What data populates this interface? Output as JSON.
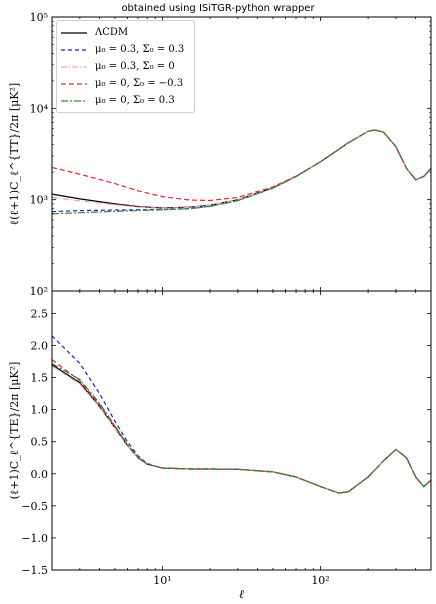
{
  "title": "obtained using ISiTGR-python wrapper",
  "chart_data": [
    {
      "type": "line",
      "panel": "top",
      "xscale": "log",
      "yscale": "log",
      "xlim": [
        2,
        500
      ],
      "ylim": [
        100,
        100000
      ],
      "xlabel": "ℓ",
      "ylabel": "ℓ(ℓ+1)C_ℓ^{TT}/2π [μK²]",
      "ytick_labels": [
        "10²",
        "10³",
        "10⁴",
        "10⁵"
      ],
      "ytick_values": [
        100,
        1000,
        10000,
        100000
      ],
      "legend_position": "top-left",
      "series": [
        {
          "name": "ΛCDM",
          "color": "#000000",
          "dash": "solid",
          "x": [
            2,
            3,
            5,
            7,
            10,
            15,
            20,
            30,
            50,
            70,
            100,
            150,
            200,
            220,
            250,
            300,
            350,
            400,
            450,
            500
          ],
          "y": [
            1150,
            1020,
            900,
            840,
            810,
            830,
            870,
            1000,
            1350,
            1800,
            2600,
            4200,
            5600,
            5800,
            5500,
            3800,
            2200,
            1650,
            1800,
            2200
          ]
        },
        {
          "name": "μ₀ = 0.3, Σ₀ = 0.3",
          "color": "#1f1fd6",
          "dash": "4,3",
          "x": [
            2,
            3,
            5,
            7,
            10,
            15,
            20,
            30,
            50,
            70,
            100,
            150,
            200,
            220,
            250,
            300,
            350,
            400,
            450,
            500
          ],
          "y": [
            740,
            760,
            770,
            775,
            780,
            800,
            850,
            980,
            1340,
            1790,
            2600,
            4200,
            5600,
            5800,
            5500,
            3800,
            2200,
            1650,
            1800,
            2200
          ]
        },
        {
          "name": "μ₀ = 0.3, Σ₀ = 0",
          "color": "#f4a3b7",
          "dash": "6,2,1,2",
          "x": [
            2,
            3,
            5,
            7,
            10,
            15,
            20,
            30,
            50,
            70,
            100,
            150,
            200,
            220,
            250,
            300,
            350,
            400,
            450,
            500
          ],
          "y": [
            1060,
            970,
            880,
            830,
            805,
            825,
            868,
            998,
            1348,
            1798,
            2600,
            4200,
            5600,
            5800,
            5500,
            3800,
            2200,
            1650,
            1800,
            2200
          ]
        },
        {
          "name": "μ₀ = 0, Σ₀ = −0.3",
          "color": "#e8252b",
          "dash": "5,3",
          "x": [
            2,
            3,
            5,
            7,
            10,
            15,
            20,
            30,
            50,
            70,
            100,
            150,
            200,
            220,
            250,
            300,
            350,
            400,
            450,
            500
          ],
          "y": [
            2250,
            1900,
            1500,
            1250,
            1080,
            990,
            980,
            1060,
            1380,
            1810,
            2600,
            4200,
            5600,
            5800,
            5500,
            3800,
            2200,
            1650,
            1800,
            2200
          ]
        },
        {
          "name": "μ₀ = 0, Σ₀ = 0.3",
          "color": "#2e8b2e",
          "dash": "7,2,2,2",
          "x": [
            2,
            3,
            5,
            7,
            10,
            15,
            20,
            30,
            50,
            70,
            100,
            150,
            200,
            220,
            250,
            300,
            350,
            400,
            450,
            500
          ],
          "y": [
            700,
            720,
            745,
            760,
            775,
            795,
            845,
            975,
            1335,
            1785,
            2600,
            4200,
            5600,
            5800,
            5500,
            3800,
            2200,
            1650,
            1800,
            2200
          ]
        }
      ]
    },
    {
      "type": "line",
      "panel": "bottom",
      "xscale": "log",
      "xlim": [
        2,
        500
      ],
      "ylim": [
        -1.5,
        2.85
      ],
      "xlabel": "ℓ",
      "ylabel": "(ℓ+1)C_ℓ^{TE}/2π [μK²]",
      "ytick_values": [
        -1.5,
        -1.0,
        -0.5,
        0.0,
        0.5,
        1.0,
        1.5,
        2.0,
        2.5
      ],
      "ytick_labels": [
        "−1.5",
        "−1.0",
        "−0.5",
        "0.0",
        "0.5",
        "1.0",
        "1.5",
        "2.0",
        "2.5"
      ],
      "xtick_values": [
        10,
        100
      ],
      "xtick_labels": [
        "10¹",
        "10²"
      ],
      "series": [
        {
          "name": "ΛCDM",
          "color": "#000000",
          "dash": "solid",
          "x": [
            2,
            3,
            4,
            5,
            6,
            7,
            8,
            10,
            15,
            20,
            30,
            50,
            70,
            100,
            130,
            150,
            200,
            250,
            300,
            350,
            400,
            450,
            500
          ],
          "y": [
            1.7,
            1.42,
            1.05,
            0.72,
            0.44,
            0.25,
            0.15,
            0.09,
            0.075,
            0.075,
            0.07,
            0.03,
            -0.05,
            -0.2,
            -0.3,
            -0.28,
            -0.05,
            0.2,
            0.38,
            0.25,
            -0.05,
            -0.2,
            -0.1
          ]
        },
        {
          "name": "μ₀ = 0.3, Σ₀ = 0.3",
          "color": "#1f1fd6",
          "dash": "4,3",
          "x": [
            2,
            3,
            4,
            5,
            6,
            7,
            8,
            10,
            15,
            20,
            30,
            50,
            70,
            100,
            130,
            150,
            200,
            250,
            300,
            350,
            400,
            450,
            500
          ],
          "y": [
            2.15,
            1.72,
            1.25,
            0.82,
            0.5,
            0.28,
            0.16,
            0.09,
            0.075,
            0.075,
            0.07,
            0.03,
            -0.05,
            -0.2,
            -0.3,
            -0.28,
            -0.05,
            0.2,
            0.38,
            0.25,
            -0.05,
            -0.2,
            -0.1
          ]
        },
        {
          "name": "μ₀ = 0.3, Σ₀ = 0",
          "color": "#f4a3b7",
          "dash": "6,2,1,2",
          "x": [
            2,
            3,
            4,
            5,
            6,
            7,
            8,
            10,
            15,
            20,
            30,
            50,
            70,
            100,
            130,
            150,
            200,
            250,
            300,
            350,
            400,
            450,
            500
          ],
          "y": [
            1.68,
            1.4,
            1.04,
            0.71,
            0.44,
            0.25,
            0.15,
            0.09,
            0.075,
            0.075,
            0.07,
            0.03,
            -0.05,
            -0.2,
            -0.3,
            -0.28,
            -0.05,
            0.2,
            0.38,
            0.25,
            -0.05,
            -0.2,
            -0.1
          ]
        },
        {
          "name": "μ₀ = 0, Σ₀ = −0.3",
          "color": "#e8252b",
          "dash": "5,3",
          "x": [
            2,
            3,
            4,
            5,
            6,
            7,
            8,
            10,
            15,
            20,
            30,
            50,
            70,
            100,
            130,
            150,
            200,
            250,
            300,
            350,
            400,
            450,
            500
          ],
          "y": [
            1.78,
            1.45,
            1.08,
            0.74,
            0.45,
            0.26,
            0.15,
            0.09,
            0.075,
            0.075,
            0.07,
            0.03,
            -0.05,
            -0.2,
            -0.3,
            -0.28,
            -0.05,
            0.2,
            0.38,
            0.25,
            -0.05,
            -0.2,
            -0.1
          ]
        },
        {
          "name": "μ₀ = 0, Σ₀ = 0.3",
          "color": "#2e8b2e",
          "dash": "7,2,2,2",
          "x": [
            2,
            3,
            4,
            5,
            6,
            7,
            8,
            10,
            15,
            20,
            30,
            50,
            70,
            100,
            130,
            150,
            200,
            250,
            300,
            350,
            400,
            450,
            500
          ],
          "y": [
            1.72,
            1.47,
            1.1,
            0.75,
            0.46,
            0.26,
            0.15,
            0.09,
            0.075,
            0.075,
            0.07,
            0.03,
            -0.05,
            -0.2,
            -0.3,
            -0.28,
            -0.05,
            0.2,
            0.38,
            0.25,
            -0.05,
            -0.2,
            -0.1
          ]
        }
      ]
    }
  ]
}
